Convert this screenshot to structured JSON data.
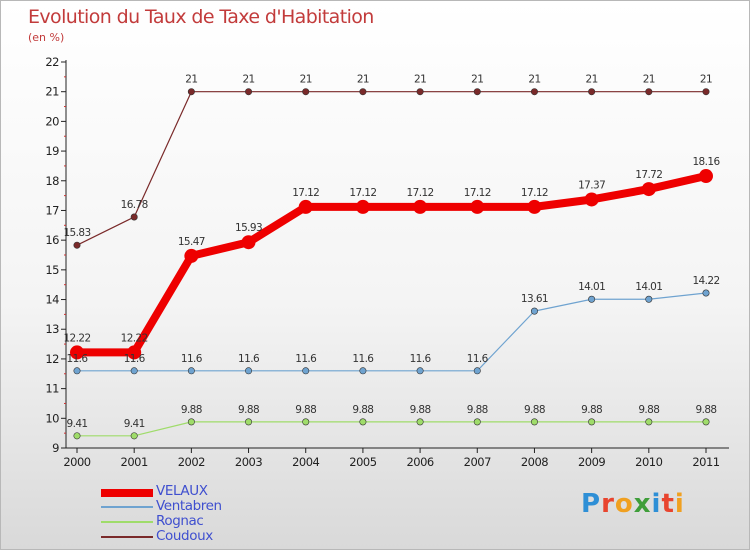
{
  "title": "Evolution du Taux de Taxe d'Habitation",
  "subtitle": "(en %)",
  "logo": {
    "letters": [
      "P",
      "r",
      "o",
      "x",
      "i",
      "t",
      "i"
    ],
    "colors": [
      "#2e8fd6",
      "#e8442e",
      "#f0a020",
      "#3f9e3a",
      "#2e8fd6",
      "#e8442e",
      "#f0a020"
    ]
  },
  "chart_data": {
    "type": "line",
    "x": [
      "2000",
      "2001",
      "2002",
      "2003",
      "2004",
      "2005",
      "2006",
      "2007",
      "2008",
      "2009",
      "2010",
      "2011"
    ],
    "ylim": [
      9,
      22
    ],
    "yticks": [
      "9",
      "10",
      "11",
      "12",
      "13",
      "14",
      "15",
      "16",
      "17",
      "18",
      "19",
      "20",
      "21",
      "22"
    ],
    "grid": false,
    "legend_position": "bottom-left",
    "series": [
      {
        "name": "VELAUX",
        "color": "#ee0000",
        "width": 8,
        "marker": 7,
        "values": [
          12.22,
          12.22,
          15.47,
          15.93,
          17.12,
          17.12,
          17.12,
          17.12,
          17.12,
          17.37,
          17.72,
          18.16
        ],
        "labels": [
          "12.22",
          "12.22",
          "15.47",
          "15.93",
          "17.12",
          "17.12",
          "17.12",
          "17.12",
          "17.12",
          "17.37",
          "17.72",
          "18.16"
        ]
      },
      {
        "name": "Ventabren",
        "color": "#6fa3d0",
        "width": 1.2,
        "marker": 3.2,
        "values": [
          11.6,
          11.6,
          11.6,
          11.6,
          11.6,
          11.6,
          11.6,
          11.6,
          13.61,
          14.01,
          14.01,
          14.22
        ],
        "labels": [
          "11.6",
          "11.6",
          "11.6",
          "11.6",
          "11.6",
          "11.6",
          "11.6",
          "11.6",
          "13.61",
          "14.01",
          "14.01",
          "14.22"
        ]
      },
      {
        "name": "Rognac",
        "color": "#9fdc6a",
        "width": 1.2,
        "marker": 3.2,
        "values": [
          9.41,
          9.41,
          9.88,
          9.88,
          9.88,
          9.88,
          9.88,
          9.88,
          9.88,
          9.88,
          9.88,
          9.88
        ],
        "labels": [
          "9.41",
          "9.41",
          "9.88",
          "9.88",
          "9.88",
          "9.88",
          "9.88",
          "9.88",
          "9.88",
          "9.88",
          "9.88",
          "9.88"
        ]
      },
      {
        "name": "Coudoux",
        "color": "#7a2a2a",
        "width": 1.2,
        "marker": 3.2,
        "values": [
          15.83,
          16.78,
          21,
          21,
          21,
          21,
          21,
          21,
          21,
          21,
          21,
          21
        ],
        "labels": [
          "15.83",
          "16.78",
          "21",
          "21",
          "21",
          "21",
          "21",
          "21",
          "21",
          "21",
          "21",
          "21"
        ]
      }
    ]
  }
}
